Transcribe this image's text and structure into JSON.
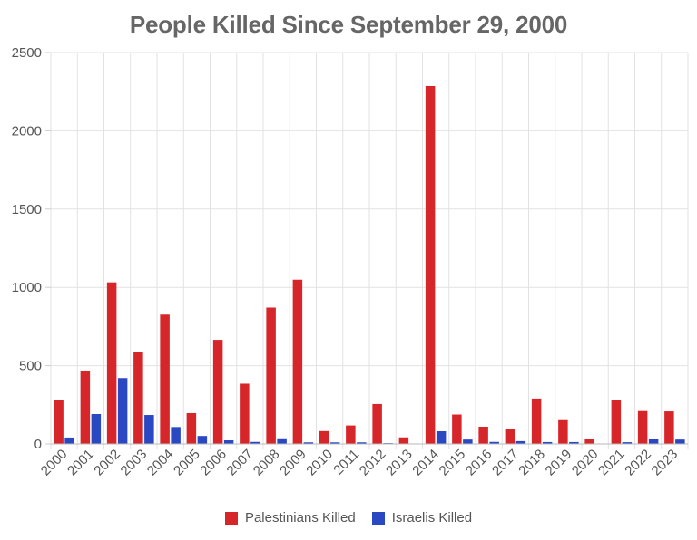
{
  "chart_data": {
    "type": "bar",
    "title": "People Killed Since September 29, 2000",
    "categories": [
      "2000",
      "2001",
      "2002",
      "2003",
      "2004",
      "2005",
      "2006",
      "2007",
      "2008",
      "2009",
      "2010",
      "2011",
      "2012",
      "2013",
      "2014",
      "2015",
      "2016",
      "2017",
      "2018",
      "2019",
      "2020",
      "2021",
      "2022",
      "2023"
    ],
    "series": [
      {
        "name": "Palestinians Killed",
        "color": "#d7262a",
        "values": [
          282,
          469,
          1032,
          588,
          826,
          197,
          665,
          385,
          871,
          1049,
          82,
          118,
          255,
          42,
          2286,
          188,
          110,
          97,
          290,
          152,
          34,
          280,
          210,
          208
        ]
      },
      {
        "name": "Israelis Killed",
        "color": "#2948c2",
        "values": [
          41,
          191,
          421,
          185,
          108,
          51,
          23,
          13,
          36,
          10,
          10,
          10,
          5,
          3,
          81,
          28,
          13,
          18,
          12,
          12,
          3,
          11,
          29,
          28
        ]
      }
    ],
    "xlabel": "",
    "ylabel": "",
    "ylim": [
      0,
      2500
    ],
    "yticks": [
      0,
      500,
      1000,
      1500,
      2000,
      2500
    ],
    "grid": true,
    "legend_position": "bottom"
  }
}
